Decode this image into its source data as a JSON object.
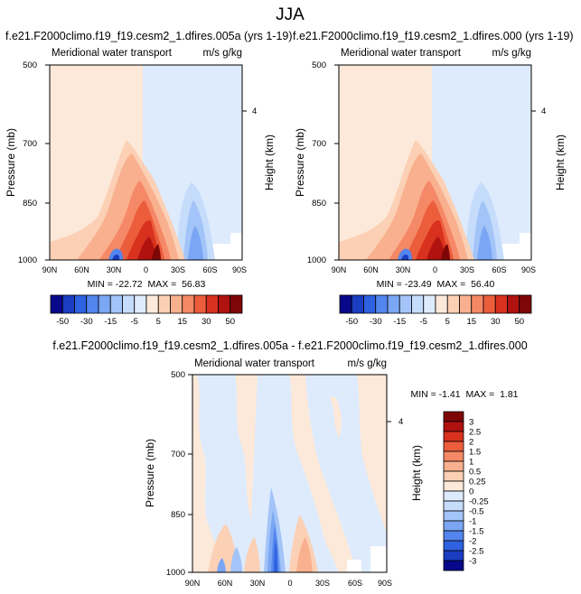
{
  "title": "JJA",
  "colorbar_top": {
    "labels": [
      "-50",
      "-30",
      "-15",
      "-5",
      "5",
      "15",
      "30",
      "50"
    ],
    "colors": [
      "#08088a",
      "#1a3dc2",
      "#2f62e0",
      "#5385ee",
      "#7aa6f4",
      "#a3c4f8",
      "#c5dcfb",
      "#deebfd",
      "#fde9d9",
      "#fbd0b4",
      "#f9b08e",
      "#f58866",
      "#ec5d3c",
      "#d8321e",
      "#b01210",
      "#7e0606"
    ]
  },
  "colorbar_diff": {
    "labels": [
      "3",
      "2.5",
      "2",
      "1.5",
      "1",
      "0.5",
      "0.25",
      "0",
      "-0.25",
      "-0.5",
      "-1",
      "-1.5",
      "-2",
      "-2.5",
      "-3"
    ],
    "colors": [
      "#7e0606",
      "#b01210",
      "#d8321e",
      "#ec5d3c",
      "#f58866",
      "#f9b08e",
      "#fbd0b4",
      "#fde9d9",
      "#deebfd",
      "#c5dcfb",
      "#a3c4f8",
      "#7aa6f4",
      "#5385ee",
      "#2f62e0",
      "#1a3dc2",
      "#08088a"
    ]
  },
  "chart_data": [
    {
      "type": "contour",
      "title": "f.e21.F2000climo.f19_f19.cesm2_1.dfires.005a (yrs 1-19)",
      "subtitle_left": "Meridional water transport",
      "subtitle_right": "m/s g/kg",
      "xlabel": "",
      "ylabel": "Pressure (mb)",
      "ylabel_right": "Height (km)",
      "x_ticks": [
        "90N",
        "60N",
        "30N",
        "0",
        "30S",
        "60S",
        "90S"
      ],
      "y_ticks": [
        "500",
        "700",
        "850",
        "1000"
      ],
      "right_ticks": [
        "4"
      ],
      "stats": "MIN = -22.72  MAX =  56.83",
      "min": -22.72,
      "max": 56.83
    },
    {
      "type": "contour",
      "title": "f.e21.F2000climo.f19_f19.cesm2_1.dfires.000 (yrs 1-19)",
      "subtitle_left": "Meridional water transport",
      "subtitle_right": "m/s g/kg",
      "xlabel": "",
      "ylabel": "Pressure (mb)",
      "ylabel_right": "Height (km)",
      "x_ticks": [
        "90N",
        "60N",
        "30N",
        "0",
        "30S",
        "60S",
        "90S"
      ],
      "y_ticks": [
        "500",
        "700",
        "850",
        "1000"
      ],
      "right_ticks": [
        "4"
      ],
      "stats": "MIN = -23.49  MAX =  56.40",
      "min": -23.49,
      "max": 56.4
    },
    {
      "type": "contour",
      "title": "f.e21.F2000climo.f19_f19.cesm2_1.dfires.005a - f.e21.F2000climo.f19_f19.cesm2_1.dfires.000",
      "subtitle_left": "Meridional water transport",
      "subtitle_right": "m/s g/kg",
      "xlabel": "",
      "ylabel": "Pressure (mb)",
      "ylabel_right": "Height (km)",
      "x_ticks": [
        "90N",
        "60N",
        "30N",
        "0",
        "30S",
        "60S",
        "90S"
      ],
      "y_ticks": [
        "500",
        "700",
        "850",
        "1000"
      ],
      "right_ticks": [
        "4"
      ],
      "stats": "MIN = -1.41  MAX =  1.81",
      "min": -1.41,
      "max": 1.81
    }
  ]
}
